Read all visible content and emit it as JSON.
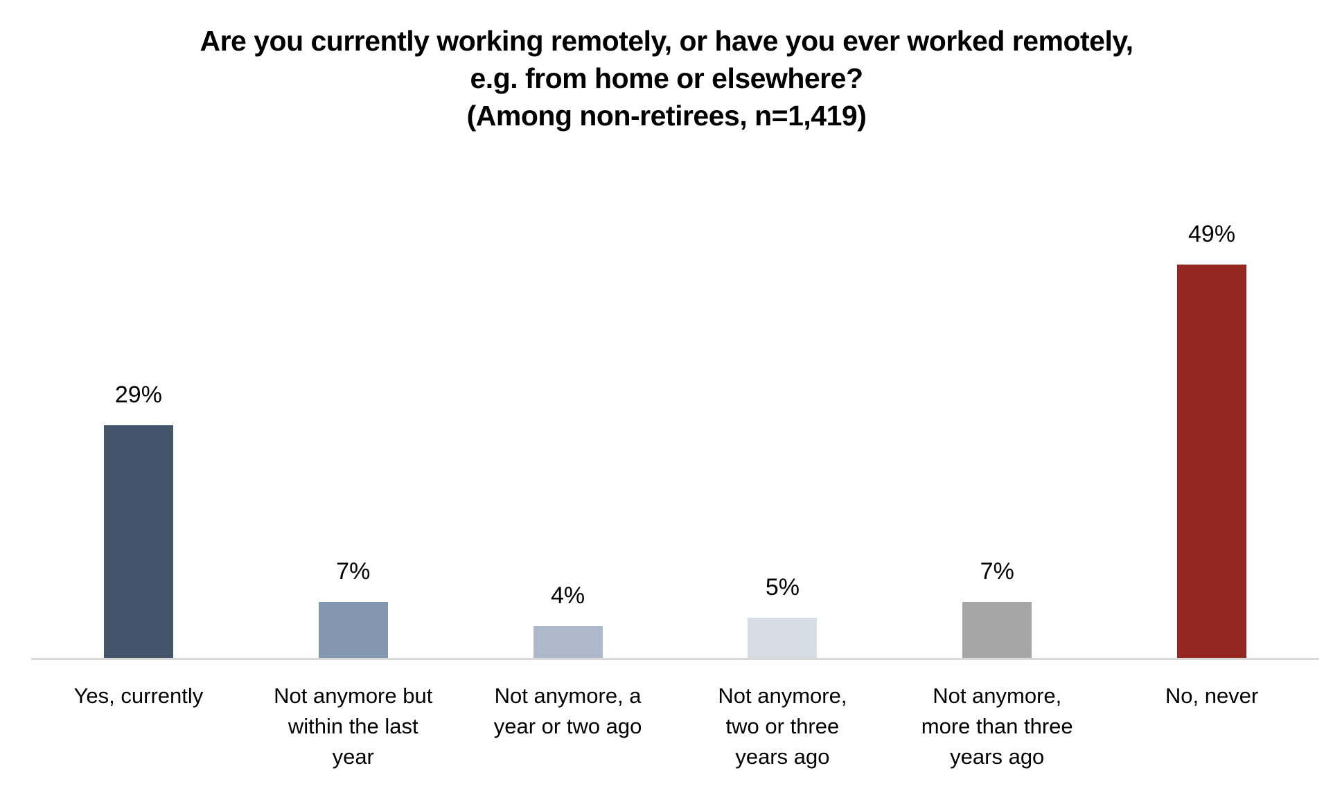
{
  "title": {
    "line1": "Are you currently working remotely, or have you ever worked remotely,",
    "line2": "e.g. from home or elsewhere?",
    "line3": "(Among non-retirees, n=1,419)"
  },
  "chart_data": {
    "type": "bar",
    "title": "Are you currently working remotely, or have you ever worked remotely, e.g. from home or elsewhere? (Among non-retirees, n=1,419)",
    "categories": [
      "Yes, currently",
      "Not anymore but within the last year",
      "Not anymore, a year or two ago",
      "Not anymore, two or three years ago",
      "Not anymore, more than three years ago",
      "No, never"
    ],
    "category_wrapped": [
      "Yes, currently",
      "Not anymore but\nwithin the last\nyear",
      "Not anymore, a\nyear or two ago",
      "Not anymore,\ntwo or three\nyears ago",
      "Not anymore,\nmore than three\nyears ago",
      "No, never"
    ],
    "values": [
      29,
      7,
      4,
      5,
      7,
      49
    ],
    "value_labels": [
      "29%",
      "7%",
      "4%",
      "5%",
      "7%",
      "49%"
    ],
    "colors": [
      "#44546A",
      "#8497B0",
      "#ADB9CA",
      "#D6DCE4",
      "#A6A6A6",
      "#952722"
    ],
    "ylim": [
      0,
      50
    ],
    "xlabel": "",
    "ylabel": "",
    "grid": false,
    "legend": "none",
    "axis_line_color": "#D9D9D9",
    "background_color": "#FFFFFF",
    "text_color": "#000000"
  }
}
